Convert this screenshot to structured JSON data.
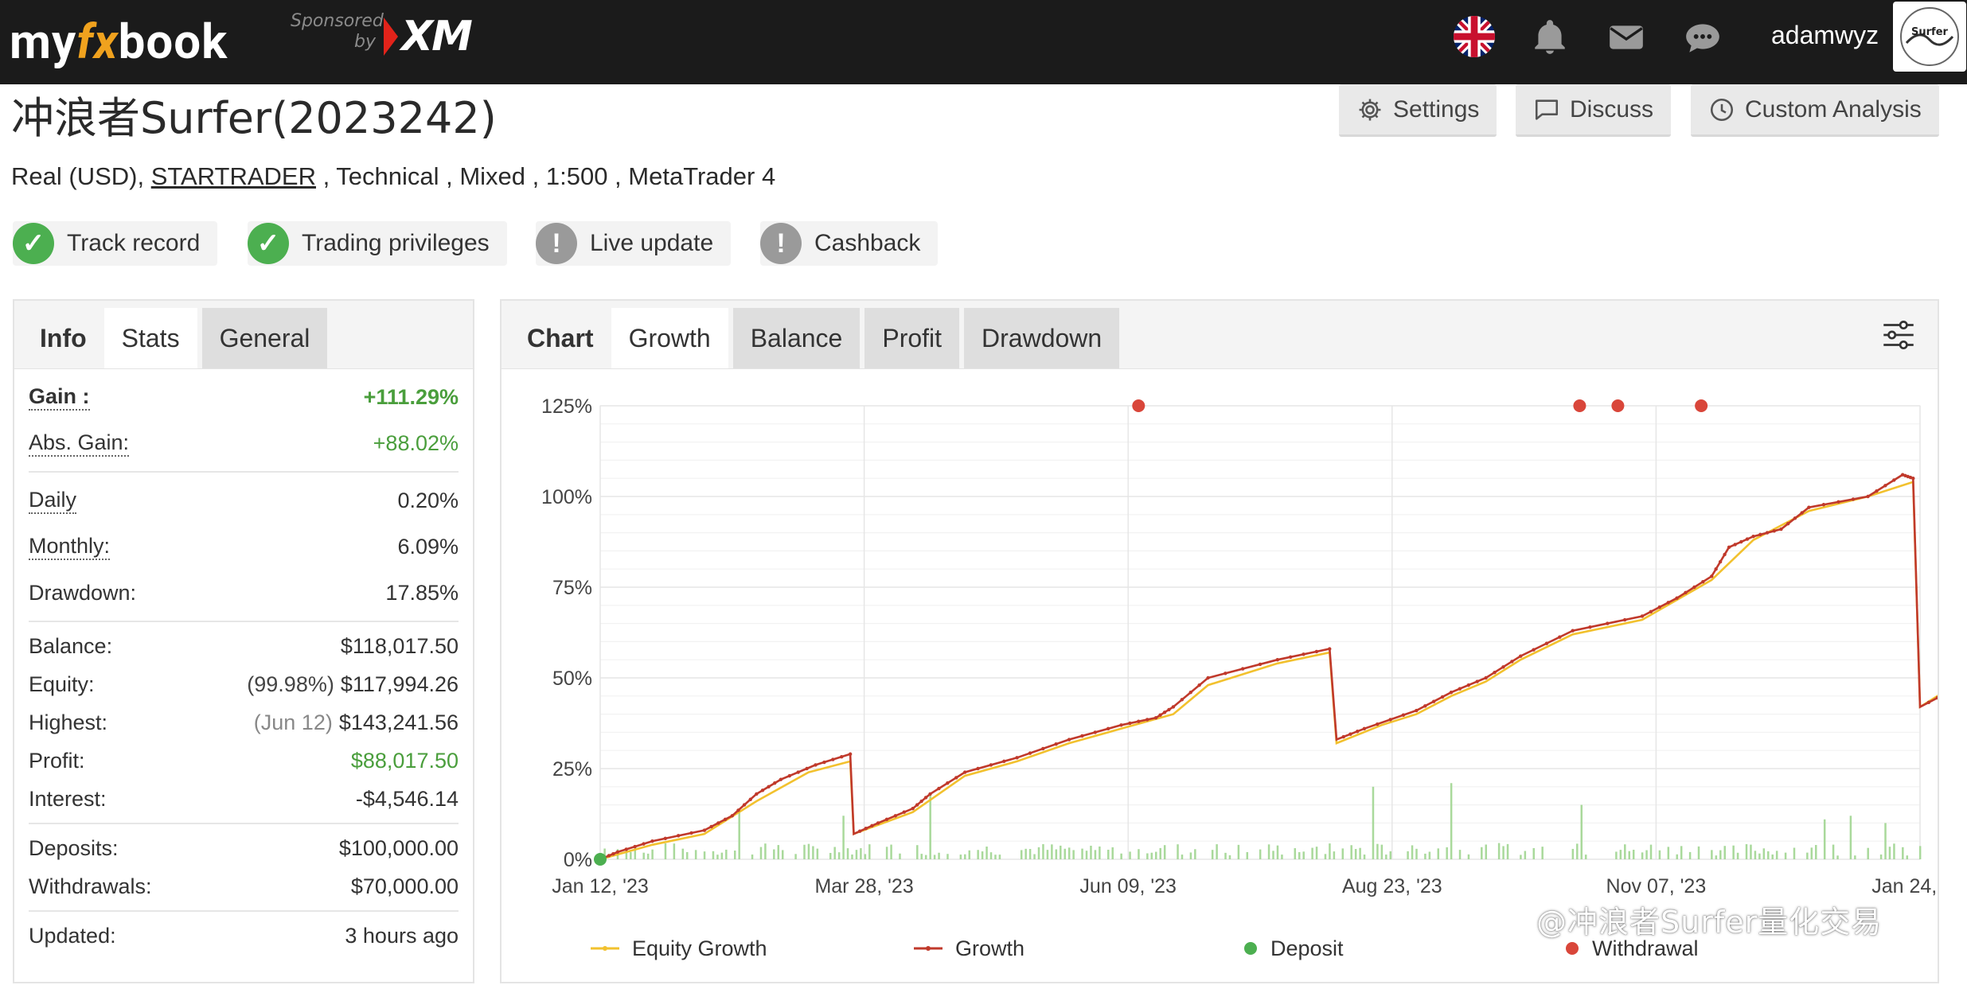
{
  "header": {
    "logo_pre": "my",
    "logo_fx": "fx",
    "logo_post": "book",
    "sponsored": "Sponsored",
    "by": "by",
    "sponsor_brand": "XM",
    "username": "adamwyz",
    "avatar_text": "Surfer"
  },
  "page": {
    "title": "冲浪者Surfer(2023242)",
    "subtitle_prefix": "Real (USD), ",
    "broker": "STARTRADER",
    "subtitle_suffix": " , Technical , Mixed , 1:500 , MetaTrader 4"
  },
  "actions": {
    "settings": "Settings",
    "discuss": "Discuss",
    "custom_analysis": "Custom Analysis"
  },
  "badges": [
    {
      "label": "Track record",
      "status": "ok"
    },
    {
      "label": "Trading privileges",
      "status": "ok"
    },
    {
      "label": "Live update",
      "status": "warn"
    },
    {
      "label": "Cashback",
      "status": "warn"
    }
  ],
  "left_tabs": {
    "info": "Info",
    "stats": "Stats",
    "general": "General"
  },
  "stats": {
    "gain_label": "Gain :",
    "gain_value": "+111.29%",
    "abs_gain_label": "Abs. Gain:",
    "abs_gain_value": "+88.02%",
    "daily_label": "Daily",
    "daily_value": "0.20%",
    "monthly_label": "Monthly:",
    "monthly_value": "6.09%",
    "drawdown_label": "Drawdown:",
    "drawdown_value": "17.85%",
    "balance_label": "Balance:",
    "balance_value": "$118,017.50",
    "equity_label": "Equity:",
    "equity_note": "(99.98%)",
    "equity_value": "$117,994.26",
    "highest_label": "Highest:",
    "highest_note": "(Jun 12)",
    "highest_value": "$143,241.56",
    "profit_label": "Profit:",
    "profit_value": "$88,017.50",
    "interest_label": "Interest:",
    "interest_value": "-$4,546.14",
    "deposits_label": "Deposits:",
    "deposits_value": "$100,000.00",
    "withdrawals_label": "Withdrawals:",
    "withdrawals_value": "$70,000.00",
    "updated_label": "Updated:",
    "updated_value": "3 hours ago"
  },
  "chart_tabs": {
    "chart": "Chart",
    "growth": "Growth",
    "balance": "Balance",
    "profit": "Profit",
    "drawdown": "Drawdown"
  },
  "legend": {
    "equity": "Equity Growth",
    "growth": "Growth",
    "deposit": "Deposit",
    "withdrawal": "Withdrawal"
  },
  "watermark": "@冲浪者Surfer量化交易",
  "colors": {
    "growth": "#c0392b",
    "equity": "#f2c12e",
    "volume": "#a9d99b",
    "deposit": "#4caf50",
    "withdrawal": "#d9463a",
    "gain_green": "#4a9e3c"
  },
  "chart_data": {
    "type": "line",
    "ylim": [
      0,
      125
    ],
    "yticks": [
      "0%",
      "25%",
      "50%",
      "75%",
      "100%",
      "125%"
    ],
    "xticks": [
      "Jan 12, '23",
      "Mar 28, '23",
      "Jun 09, '23",
      "Aug 23, '23",
      "Nov 07, '23",
      "Jan 24, '24"
    ],
    "xlim_days": [
      0,
      380
    ],
    "series": [
      {
        "name": "Growth",
        "points": [
          [
            0,
            0
          ],
          [
            5,
            2
          ],
          [
            15,
            5
          ],
          [
            30,
            8
          ],
          [
            38,
            12
          ],
          [
            45,
            18
          ],
          [
            52,
            22
          ],
          [
            62,
            26
          ],
          [
            72,
            29
          ],
          [
            73,
            7
          ],
          [
            80,
            10
          ],
          [
            90,
            14
          ],
          [
            95,
            18
          ],
          [
            105,
            24
          ],
          [
            120,
            28
          ],
          [
            135,
            33
          ],
          [
            150,
            37
          ],
          [
            160,
            39
          ],
          [
            165,
            42
          ],
          [
            175,
            50
          ],
          [
            195,
            55
          ],
          [
            210,
            58
          ],
          [
            212,
            33
          ],
          [
            220,
            36
          ],
          [
            235,
            41
          ],
          [
            245,
            46
          ],
          [
            255,
            50
          ],
          [
            265,
            56
          ],
          [
            280,
            63
          ],
          [
            300,
            67
          ],
          [
            310,
            72
          ],
          [
            320,
            78
          ],
          [
            325,
            86
          ],
          [
            332,
            89
          ],
          [
            340,
            91
          ],
          [
            348,
            97
          ],
          [
            365,
            100
          ],
          [
            375,
            106
          ],
          [
            378,
            105
          ],
          [
            380,
            42
          ],
          [
            390,
            47
          ],
          [
            395,
            53
          ],
          [
            405,
            61
          ],
          [
            415,
            68
          ],
          [
            425,
            76
          ],
          [
            435,
            85
          ],
          [
            445,
            92
          ],
          [
            448,
            111
          ],
          [
            452,
            112
          ]
        ]
      },
      {
        "name": "Equity Growth",
        "points": [
          [
            0,
            0
          ],
          [
            15,
            4
          ],
          [
            30,
            7
          ],
          [
            45,
            16
          ],
          [
            60,
            24
          ],
          [
            72,
            27
          ],
          [
            73,
            7
          ],
          [
            90,
            13
          ],
          [
            105,
            23
          ],
          [
            120,
            27
          ],
          [
            135,
            32
          ],
          [
            150,
            36
          ],
          [
            165,
            40
          ],
          [
            175,
            48
          ],
          [
            195,
            54
          ],
          [
            210,
            57
          ],
          [
            212,
            32
          ],
          [
            225,
            37
          ],
          [
            235,
            40
          ],
          [
            245,
            45
          ],
          [
            255,
            49
          ],
          [
            265,
            55
          ],
          [
            280,
            62
          ],
          [
            300,
            66
          ],
          [
            320,
            77
          ],
          [
            332,
            88
          ],
          [
            348,
            96
          ],
          [
            365,
            100
          ],
          [
            378,
            104
          ],
          [
            380,
            42
          ],
          [
            395,
            51
          ],
          [
            405,
            59
          ],
          [
            425,
            75
          ],
          [
            445,
            91
          ],
          [
            452,
            111
          ]
        ]
      }
    ],
    "deposits": [
      [
        0,
        0
      ]
    ],
    "withdrawals": [
      [
        155,
        125
      ],
      [
        282,
        125
      ],
      [
        293,
        125
      ],
      [
        317,
        125
      ]
    ],
    "volume_bars_max_pct": 22
  }
}
